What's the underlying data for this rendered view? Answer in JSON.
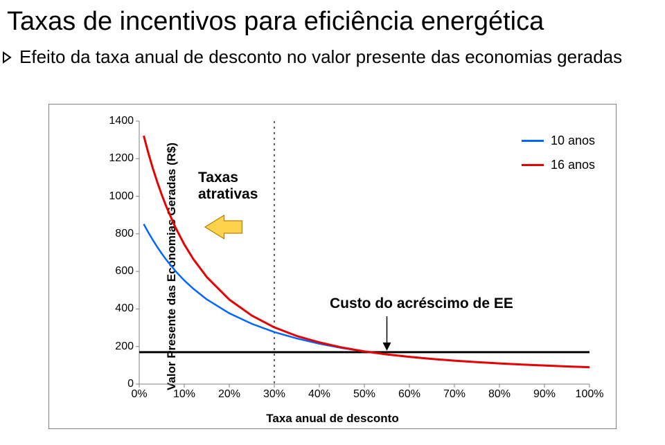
{
  "title": "Taxas de incentivos para eficiência energética",
  "subtitle": "Efeito da taxa anual de desconto no valor presente das economias geradas",
  "chart": {
    "type": "line",
    "background_color": "#ffffff",
    "frame_border_color": "#808080",
    "ylabel": "Valor Presente das Economias Geradas (R$)",
    "xlabel": "Taxa anual de desconto",
    "title_fontsize": 38,
    "subtitle_fontsize": 26,
    "axis_label_fontsize": 17,
    "tick_fontsize": 16,
    "ylim": [
      0,
      1400
    ],
    "ytick_step": 200,
    "yticks": [
      "0",
      "200",
      "400",
      "600",
      "800",
      "1000",
      "1200",
      "1400"
    ],
    "xlim": [
      0,
      100
    ],
    "xtick_step": 10,
    "xticks": [
      "0%",
      "10%",
      "20%",
      "30%",
      "40%",
      "50%",
      "60%",
      "70%",
      "80%",
      "90%",
      "100%"
    ],
    "series": [
      {
        "name": "10 anos",
        "color": "#0066ff",
        "line_width": 2.5,
        "x": [
          1,
          2,
          3,
          4,
          5,
          6,
          8,
          10,
          12,
          15,
          20,
          25,
          30,
          35,
          40,
          45,
          50,
          55,
          60,
          65,
          70,
          75,
          80,
          85,
          90,
          95,
          100
        ],
        "y": [
          852,
          808,
          768,
          730,
          695,
          662,
          603,
          552,
          508,
          451,
          377,
          321,
          277,
          243,
          215,
          192,
          174,
          158,
          145,
          134,
          125,
          117,
          110,
          104,
          99,
          94,
          90
        ]
      },
      {
        "name": "16 anos",
        "color": "#e60000",
        "line_width": 3,
        "x": [
          1,
          2,
          3,
          4,
          5,
          6,
          8,
          10,
          12,
          15,
          20,
          25,
          30,
          35,
          40,
          45,
          50,
          55,
          60,
          65,
          70,
          75,
          80,
          85,
          90,
          95,
          100
        ],
        "y": [
          1322,
          1232,
          1150,
          1076,
          1008,
          946,
          836,
          744,
          666,
          570,
          450,
          365,
          302,
          256,
          222,
          195,
          174,
          158,
          145,
          134,
          125,
          117,
          110,
          104,
          99,
          94,
          90
        ]
      }
    ],
    "legend": {
      "position": "top-right",
      "fontsize": 18,
      "items": [
        {
          "label": "10 anos",
          "color": "#0066ff"
        },
        {
          "label": "16 anos",
          "color": "#e60000"
        }
      ]
    },
    "horizontal_ref_line": {
      "y": 170,
      "color": "#000000",
      "width": 3
    },
    "vertical_dash_line": {
      "x": 30,
      "color": "#000000",
      "dash": "3,5",
      "width": 1.2
    },
    "annotations": {
      "taxas": {
        "line1": "Taxas",
        "line2": "atrativas",
        "fontsize": 21
      },
      "custo": {
        "text": "Custo do acréscimo de EE",
        "fontsize": 21
      }
    },
    "arrow": {
      "fill": "#ffd24d",
      "stroke": "#b38600",
      "head_w": 50,
      "head_h": 34,
      "shaft_w": 26,
      "shaft_h": 18
    },
    "pointer_arrow": {
      "color": "#000000",
      "from": [
        55,
        440
      ],
      "to": [
        55,
        210
      ]
    }
  }
}
